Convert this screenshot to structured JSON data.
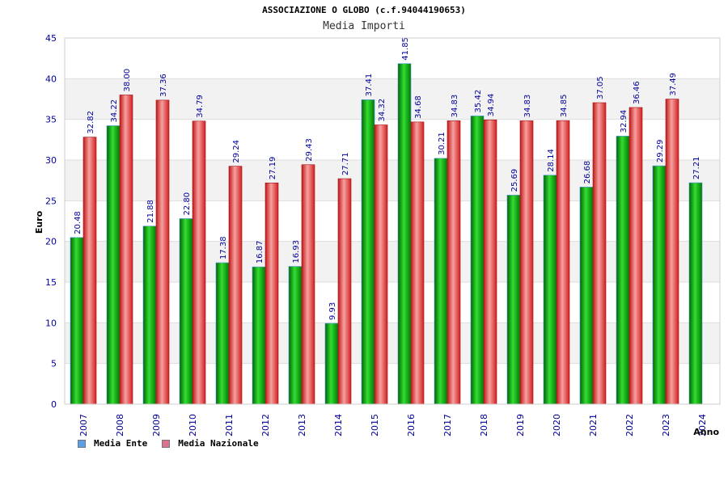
{
  "header": {
    "title": "ASSOCIAZIONE O GLOBO (c.f.94044190653)",
    "subtitle": "Media Importi"
  },
  "colors": {
    "ente": "#00a000",
    "nazionale": "#e83030",
    "legend_ente": "#5aa0e8",
    "legend_nazionale": "#e07090",
    "axis_text": "#00009a",
    "grid_band": "#f2f2f2"
  },
  "chart_data": {
    "type": "bar",
    "title": "Media Importi",
    "xlabel": "Anno",
    "ylabel": "Euro",
    "ylim": [
      0,
      45
    ],
    "yticks": [
      0,
      5,
      10,
      15,
      20,
      25,
      30,
      35,
      40,
      45
    ],
    "categories": [
      "2007",
      "2008",
      "2009",
      "2010",
      "2011",
      "2012",
      "2013",
      "2014",
      "2015",
      "2016",
      "2017",
      "2018",
      "2019",
      "2020",
      "2021",
      "2022",
      "2023",
      "2024"
    ],
    "series": [
      {
        "name": "Media Ente",
        "values": [
          20.48,
          34.22,
          21.88,
          22.8,
          17.38,
          16.87,
          16.93,
          9.93,
          37.41,
          41.85,
          30.21,
          35.42,
          25.69,
          28.14,
          26.68,
          32.94,
          29.29,
          27.21
        ],
        "labels": [
          "20.48",
          "34.22",
          "21.88",
          "22.80",
          "17.38",
          "16.87",
          "16.93",
          "9.93",
          "37.41",
          "41.85",
          "30.21",
          "35.42",
          "25.69",
          "28.14",
          "26.68",
          "32.94",
          "29.29",
          "27.21"
        ]
      },
      {
        "name": "Media Nazionale",
        "values": [
          32.82,
          38.0,
          37.36,
          34.79,
          29.24,
          27.19,
          29.43,
          27.71,
          34.32,
          34.68,
          34.83,
          34.94,
          34.83,
          34.85,
          37.05,
          36.46,
          37.49,
          null
        ],
        "labels": [
          "32.82",
          "38.00",
          "37.36",
          "34.79",
          "29.24",
          "27.19",
          "29.43",
          "27.71",
          "34.32",
          "34.68",
          "34.83",
          "34.94",
          "34.83",
          "34.85",
          "37.05",
          "36.46",
          "37.49",
          ""
        ]
      }
    ],
    "grid": true,
    "legend_position": "bottom-left"
  }
}
